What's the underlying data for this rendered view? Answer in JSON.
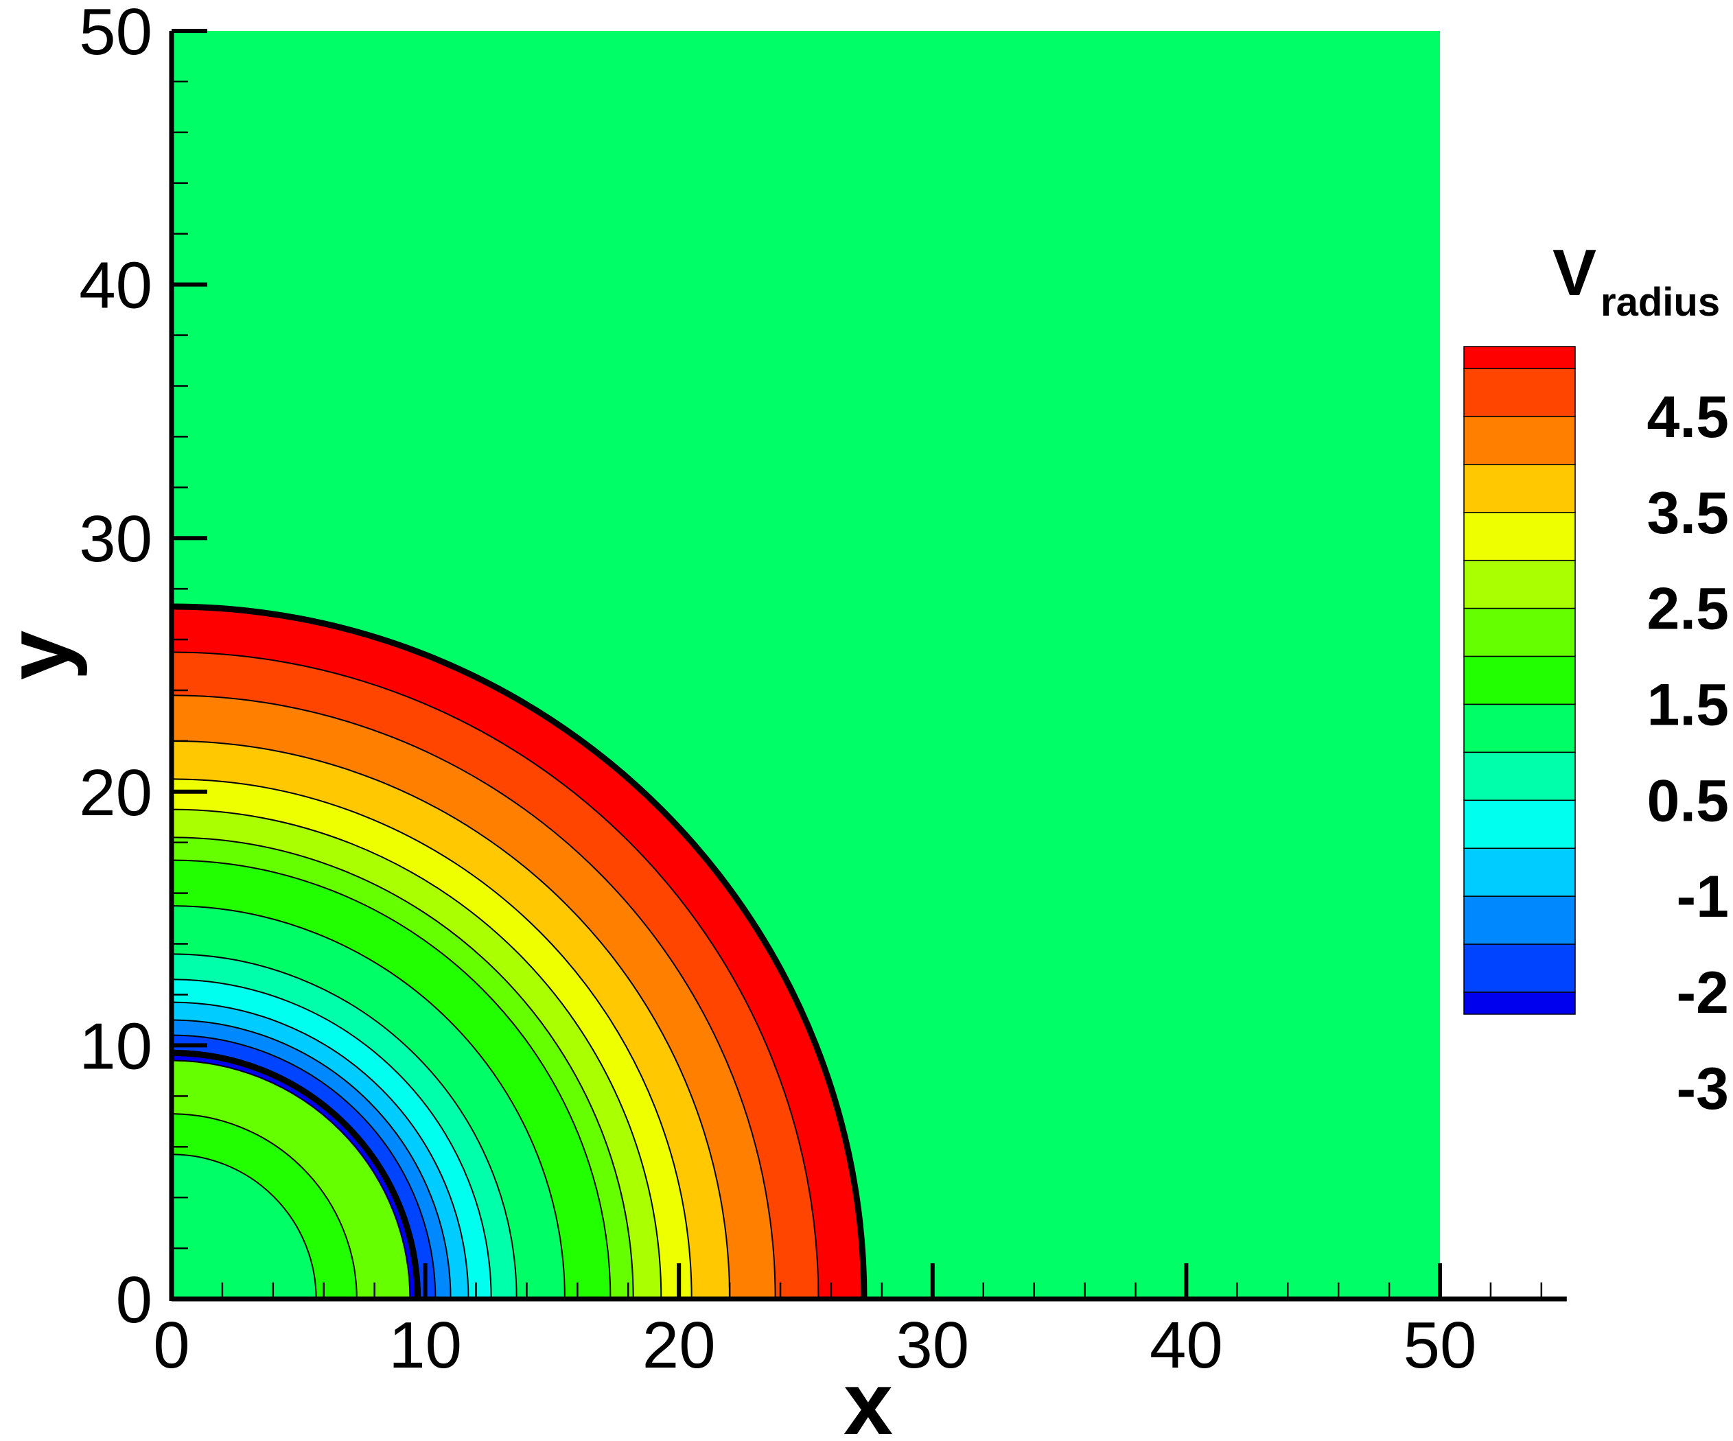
{
  "chart_data": {
    "type": "contour",
    "xlabel": "x",
    "ylabel": "y",
    "xlim": [
      0,
      55
    ],
    "ylim": [
      0,
      50
    ],
    "domain": {
      "x": [
        0,
        50
      ],
      "y": [
        0,
        50
      ]
    },
    "x_ticks": [
      "0",
      "10",
      "20",
      "30",
      "40",
      "50"
    ],
    "y_ticks": [
      "0",
      "10",
      "20",
      "30",
      "40",
      "50"
    ],
    "background_color": "#00FF66",
    "colorbar": {
      "title": "V",
      "title_subscript": "radius",
      "tick_labels": [
        "4.5",
        "3.5",
        "2.5",
        "1.5",
        "0.5",
        "-1",
        "-2",
        "-3"
      ],
      "colors_top_to_bottom": [
        "#FF0000",
        "#FF4500",
        "#FF8000",
        "#FFC800",
        "#EEFF00",
        "#AAFF00",
        "#66FF00",
        "#22FF00",
        "#00FF66",
        "#00FFAA",
        "#00FFEE",
        "#00CCFF",
        "#0088FF",
        "#0044FF",
        "#0000EE"
      ]
    },
    "contour_rings": [
      {
        "r_outer": 27.3,
        "r_inner": 25.5,
        "color": "#FF0000"
      },
      {
        "r_outer": 25.5,
        "r_inner": 23.8,
        "color": "#FF4500"
      },
      {
        "r_outer": 23.8,
        "r_inner": 22.0,
        "color": "#FF8000"
      },
      {
        "r_outer": 22.0,
        "r_inner": 20.5,
        "color": "#FFC800"
      },
      {
        "r_outer": 20.5,
        "r_inner": 19.3,
        "color": "#EEFF00"
      },
      {
        "r_outer": 19.3,
        "r_inner": 18.2,
        "color": "#AAFF00"
      },
      {
        "r_outer": 18.2,
        "r_inner": 17.3,
        "color": "#66FF00"
      },
      {
        "r_outer": 17.3,
        "r_inner": 15.5,
        "color": "#22FF00"
      },
      {
        "r_outer": 15.5,
        "r_inner": 13.6,
        "color": "#00FF66"
      },
      {
        "r_outer": 13.6,
        "r_inner": 12.6,
        "color": "#00FFAA"
      },
      {
        "r_outer": 12.6,
        "r_inner": 11.7,
        "color": "#00FFEE"
      },
      {
        "r_outer": 11.7,
        "r_inner": 11.0,
        "color": "#00CCFF"
      },
      {
        "r_outer": 11.0,
        "r_inner": 10.4,
        "color": "#0088FF"
      },
      {
        "r_outer": 10.4,
        "r_inner": 9.8,
        "color": "#0044FF"
      },
      {
        "r_outer": 9.8,
        "r_inner": 9.4,
        "color": "#0000EE"
      },
      {
        "r_outer": 9.4,
        "r_inner": 7.3,
        "color": "#66FF00"
      },
      {
        "r_outer": 7.3,
        "r_inner": 5.7,
        "color": "#22FF00"
      },
      {
        "r_outer": 5.7,
        "r_inner": 0,
        "color": "#00FF66"
      }
    ],
    "thick_contours": [
      27.3,
      9.7
    ]
  }
}
